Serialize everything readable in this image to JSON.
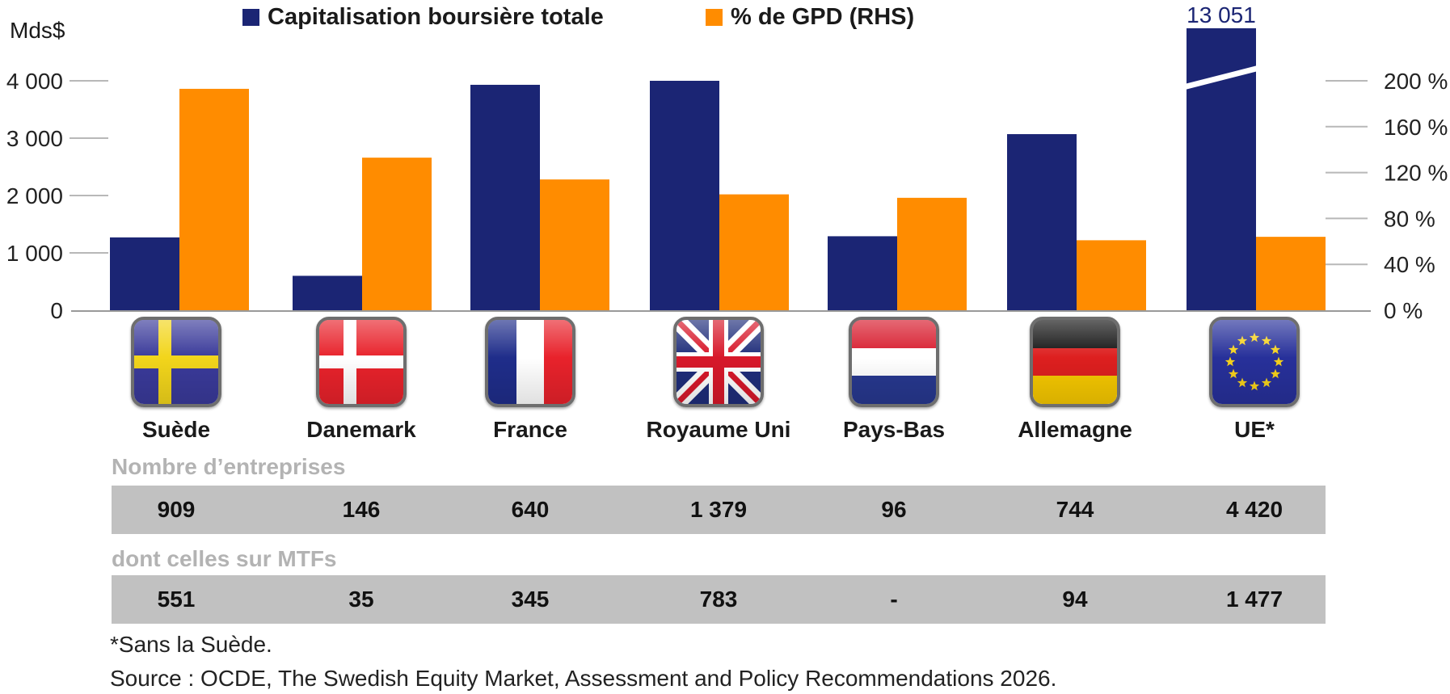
{
  "chart_data": {
    "type": "bar",
    "unit_label": "Mds$",
    "categories": [
      "Suède",
      "Danemark",
      "France",
      "Royaume Uni",
      "Pays-Bas",
      "Allemagne",
      "UE*"
    ],
    "series": [
      {
        "name": "Capitalisation boursière totale",
        "axis": "left",
        "color": "#1b2574",
        "values": [
          1270,
          600,
          3930,
          4000,
          1290,
          3070,
          13051
        ]
      },
      {
        "name": "% de GPD (RHS)",
        "axis": "right",
        "color": "#ff8c00",
        "values": [
          193,
          133,
          114,
          101,
          98,
          61,
          64
        ]
      }
    ],
    "left_axis": {
      "min": 0,
      "max": 4000,
      "ticks": [
        0,
        1000,
        2000,
        3000,
        4000
      ],
      "tick_labels": [
        "0",
        "1 000",
        "2 000",
        "3 000",
        "4 000"
      ]
    },
    "right_axis": {
      "min": 0,
      "max": 200,
      "ticks": [
        0,
        40,
        80,
        120,
        160,
        200
      ],
      "tick_labels": [
        "0 %",
        "40 %",
        "80 %",
        "120 %",
        "160 %",
        "200 %"
      ]
    },
    "axis_break": {
      "category": "UE*",
      "value_label": "13 051"
    },
    "legend_position": "top",
    "grid": false
  },
  "flags": [
    "sweden",
    "denmark",
    "france",
    "uk",
    "netherlands",
    "germany",
    "eu"
  ],
  "table": {
    "companies": {
      "title": "Nombre d’entreprises",
      "values": [
        "909",
        "146",
        "640",
        "1 379",
        "96",
        "744",
        "4 420"
      ]
    },
    "mtf": {
      "title": "dont celles sur MTFs",
      "values": [
        "551",
        "35",
        "345",
        "783",
        "-",
        "94",
        "1 477"
      ]
    }
  },
  "footnotes": {
    "note": "*Sans la Suède.",
    "source": "Source : OCDE, The Swedish Equity Market, Assessment and Policy Recommendations 2026."
  }
}
